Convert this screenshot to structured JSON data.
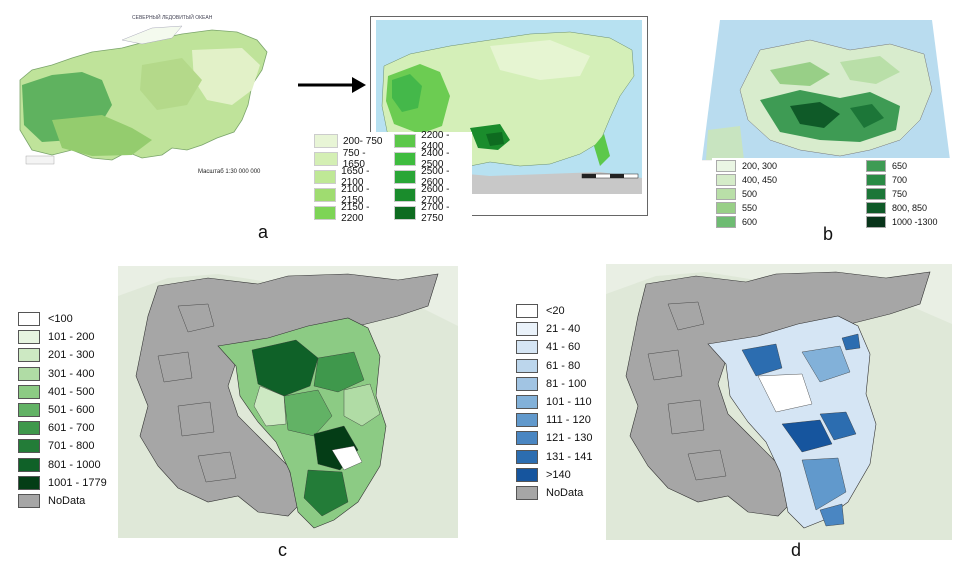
{
  "panels": {
    "a": {
      "label": "a",
      "map_title": "СЕВЕРНЫЙ ЛЕДОВИТЫЙ ОКЕАН",
      "scale_text": "Масштаб 1:30 000 000",
      "legend": [
        {
          "label": "200- 750",
          "color": "#e8f5d6"
        },
        {
          "label": "750 - 1650",
          "color": "#d4efb4"
        },
        {
          "label": "1650 - 2100",
          "color": "#bfe896"
        },
        {
          "label": "2100 - 2150",
          "color": "#9fdc70"
        },
        {
          "label": "2150 - 2200",
          "color": "#7dd456"
        },
        {
          "label": "2200 - 2400",
          "color": "#5cc84a"
        },
        {
          "label": "2400 - 2500",
          "color": "#3fbc3f"
        },
        {
          "label": "2500 - 2600",
          "color": "#2aa637"
        },
        {
          "label": "2600 - 2700",
          "color": "#1a8c2c"
        },
        {
          "label": "2700 - 2750",
          "color": "#0e6b20"
        }
      ]
    },
    "b": {
      "label": "b",
      "legend": [
        {
          "label": "200, 300",
          "color": "#eaf6e4"
        },
        {
          "label": "650",
          "color": "#3e9b54"
        },
        {
          "label": "400, 450",
          "color": "#d5ecc9"
        },
        {
          "label": "700",
          "color": "#2a8a45"
        },
        {
          "label": "500",
          "color": "#b9dfa8"
        },
        {
          "label": "750",
          "color": "#1c7638"
        },
        {
          "label": "550",
          "color": "#98cf87"
        },
        {
          "label": "800, 850",
          "color": "#0f5a28"
        },
        {
          "label": "600",
          "color": "#6ebb72"
        },
        {
          "label": "1000 -1300",
          "color": "#08341a"
        }
      ]
    },
    "c": {
      "label": "c",
      "legend": [
        {
          "label": "<100",
          "color": "#ffffff"
        },
        {
          "label": "101 - 200",
          "color": "#e6f4e0"
        },
        {
          "label": "201 - 300",
          "color": "#cde9c3"
        },
        {
          "label": "301 - 400",
          "color": "#b0dca5"
        },
        {
          "label": "401 - 500",
          "color": "#8ccb84"
        },
        {
          "label": "501 - 600",
          "color": "#62b265"
        },
        {
          "label": "601 - 700",
          "color": "#3f984c"
        },
        {
          "label": "701 - 800",
          "color": "#237c38"
        },
        {
          "label": "801 - 1000",
          "color": "#0f6128"
        },
        {
          "label": "1001 - 1779",
          "color": "#043d16"
        },
        {
          "label": "NoData",
          "color": "#a6a6a6"
        }
      ]
    },
    "d": {
      "label": "d",
      "legend": [
        {
          "label": "<20",
          "color": "#ffffff"
        },
        {
          "label": "21 - 40",
          "color": "#eaf2fa"
        },
        {
          "label": "41 - 60",
          "color": "#d5e5f4"
        },
        {
          "label": "61 - 80",
          "color": "#bcd6ec"
        },
        {
          "label": "81 - 100",
          "color": "#a1c4e3"
        },
        {
          "label": "101 - 110",
          "color": "#82b1d9"
        },
        {
          "label": "111 - 120",
          "color": "#6199cc"
        },
        {
          "label": "121 - 130",
          "color": "#4a86c2"
        },
        {
          "label": "131 - 141",
          "color": "#2c6db0"
        },
        {
          "label": ">140",
          "color": "#16559e"
        },
        {
          "label": "NoData",
          "color": "#a6a6a6"
        }
      ]
    }
  }
}
